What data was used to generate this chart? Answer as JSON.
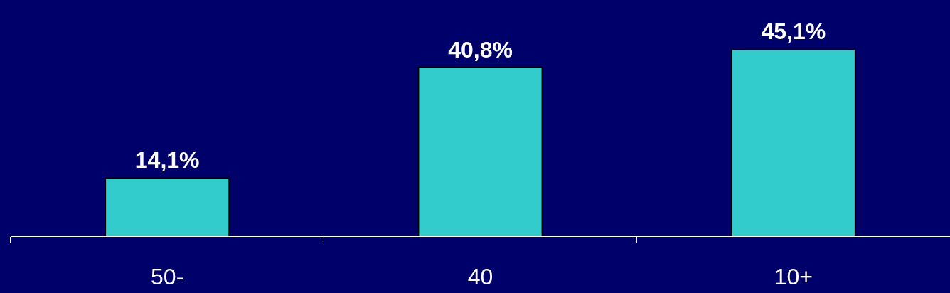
{
  "chart_data": {
    "type": "bar",
    "categories": [
      "50-",
      "40",
      "10+"
    ],
    "values": [
      14.1,
      40.8,
      45.1
    ],
    "value_labels": [
      "14,1%",
      "40,8%",
      "45,1%"
    ],
    "color": "#33cccc",
    "grid": false,
    "legend": false
  }
}
